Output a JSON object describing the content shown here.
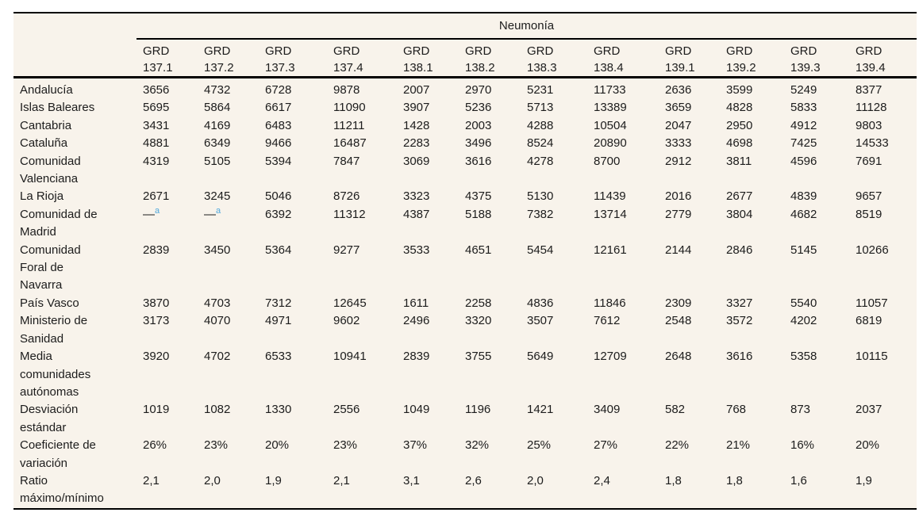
{
  "table": {
    "title": "Neumonía",
    "corner_label": "",
    "columns": [
      {
        "line1": "GRD",
        "line2": "137.1"
      },
      {
        "line1": "GRD",
        "line2": "137.2"
      },
      {
        "line1": "GRD",
        "line2": "137.3"
      },
      {
        "line1": "GRD",
        "line2": "137.4"
      },
      {
        "line1": "GRD",
        "line2": "138.1"
      },
      {
        "line1": "GRD",
        "line2": "138.2"
      },
      {
        "line1": "GRD",
        "line2": "138.3"
      },
      {
        "line1": "GRD",
        "line2": "138.4"
      },
      {
        "line1": "GRD",
        "line2": "139.1"
      },
      {
        "line1": "GRD",
        "line2": "139.2"
      },
      {
        "line1": "GRD",
        "line2": "139.3"
      },
      {
        "line1": "GRD",
        "line2": "139.4"
      }
    ],
    "rows": [
      {
        "label": "Andalucía",
        "values": [
          "3656",
          "4732",
          "6728",
          "9878",
          "2007",
          "2970",
          "5231",
          "11733",
          "2636",
          "3599",
          "5249",
          "8377"
        ]
      },
      {
        "label": "Islas Baleares",
        "values": [
          "5695",
          "5864",
          "6617",
          "11090",
          "3907",
          "5236",
          "5713",
          "13389",
          "3659",
          "4828",
          "5833",
          "11128"
        ]
      },
      {
        "label": "Cantabria",
        "values": [
          "3431",
          "4169",
          "6483",
          "11211",
          "1428",
          "2003",
          "4288",
          "10504",
          "2047",
          "2950",
          "4912",
          "9803"
        ]
      },
      {
        "label": "Cataluña",
        "values": [
          "4881",
          "6349",
          "9466",
          "16487",
          "2283",
          "3496",
          "8524",
          "20890",
          "3333",
          "4698",
          "7425",
          "14533"
        ]
      },
      {
        "label": "Comunidad Valenciana",
        "values": [
          "4319",
          "5105",
          "5394",
          "7847",
          "3069",
          "3616",
          "4278",
          "8700",
          "2912",
          "3811",
          "4596",
          "7691"
        ]
      },
      {
        "label": "La Rioja",
        "values": [
          "2671",
          "3245",
          "5046",
          "8726",
          "3323",
          "4375",
          "5130",
          "11439",
          "2016",
          "2677",
          "4839",
          "9657"
        ]
      },
      {
        "label": "Comunidad de Madrid",
        "values": [
          {
            "v": "—",
            "sup": "a"
          },
          {
            "v": "—",
            "sup": "a"
          },
          "6392",
          "11312",
          "4387",
          "5188",
          "7382",
          "13714",
          "2779",
          "3804",
          "4682",
          "8519"
        ]
      },
      {
        "label": "Comunidad Foral de Navarra",
        "values": [
          "2839",
          "3450",
          "5364",
          "9277",
          "3533",
          "4651",
          "5454",
          "12161",
          "2144",
          "2846",
          "5145",
          "10266"
        ]
      },
      {
        "label": "País Vasco",
        "values": [
          "3870",
          "4703",
          "7312",
          "12645",
          "1611",
          "2258",
          "4836",
          "11846",
          "2309",
          "3327",
          "5540",
          "11057"
        ]
      },
      {
        "label": "Ministerio de Sanidad",
        "values": [
          "3173",
          "4070",
          "4971",
          "9602",
          "2496",
          "3320",
          "3507",
          "7612",
          "2548",
          "3572",
          "4202",
          "6819"
        ]
      },
      {
        "label": "Media comunidades autónomas",
        "values": [
          "3920",
          "4702",
          "6533",
          "10941",
          "2839",
          "3755",
          "5649",
          "12709",
          "2648",
          "3616",
          "5358",
          "10115"
        ]
      },
      {
        "label": "Desviación estándar",
        "values": [
          "1019",
          "1082",
          "1330",
          "2556",
          "1049",
          "1196",
          "1421",
          "3409",
          "582",
          "768",
          "873",
          "2037"
        ]
      },
      {
        "label": "Coeficiente de variación",
        "values": [
          "26%",
          "23%",
          "20%",
          "23%",
          "37%",
          "32%",
          "25%",
          "27%",
          "22%",
          "21%",
          "16%",
          "20%"
        ]
      },
      {
        "label": "Ratio máximo/mínimo",
        "values": [
          "2,1",
          "2,0",
          "1,9",
          "2,1",
          "3,1",
          "2,6",
          "2,0",
          "2,4",
          "1,8",
          "1,8",
          "1,6",
          "1,9"
        ]
      }
    ]
  },
  "colors": {
    "table_background": "#f8f3eb",
    "text": "#1c1c1c",
    "rule": "#000000",
    "footnote_blue": "#4fa8dc"
  }
}
